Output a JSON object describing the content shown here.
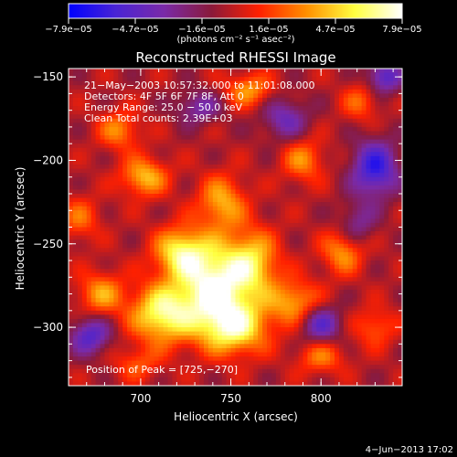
{
  "chart_data": {
    "type": "heatmap",
    "title": "Reconstructed RHESSI Image",
    "xlabel": "Heliocentric X (arcsec)",
    "ylabel": "Heliocentric Y (arcsec)",
    "xlim": [
      660,
      845
    ],
    "ylim": [
      -335,
      -145
    ],
    "x_ticks": [
      700,
      750,
      800
    ],
    "y_ticks": [
      -300,
      -250,
      -200,
      -150
    ],
    "x_tick_labels": [
      "700",
      "750",
      "800"
    ],
    "y_tick_labels": [
      "−300",
      "−250",
      "−200",
      "−150"
    ],
    "colorbar": {
      "min": -7.9e-05,
      "max": 7.9e-05,
      "tick_labels": [
        "−7.9e−05",
        "−4.7e−05",
        "−1.6e−05",
        "1.6e−05",
        "4.7e−05",
        "7.9e−05"
      ],
      "units": "(photons cm⁻² s⁻¹ asec⁻²)",
      "colors": [
        "#0000ff",
        "#4a24d4",
        "#7a2aa8",
        "#8a1a3a",
        "#ff2000",
        "#ff9000",
        "#ffff40",
        "#ffffff"
      ]
    },
    "annotations": [
      "21−May−2003 10:57:32.000 to 11:01:08.000",
      "Detectors: 4F 5F 6F 7F 8F, Att 0",
      "Energy Range: 25.0 − 50.0 keV",
      "Clean     Total counts: 2.39E+03"
    ],
    "peak_label": "Position of Peak = [725,−270]",
    "peak": [
      725,
      -270
    ],
    "sources": [
      {
        "x": 740,
        "y": -275,
        "amp": 1.0,
        "sx": 14,
        "sy": 18
      },
      {
        "x": 712,
        "y": -292,
        "amp": 0.85,
        "sx": 12,
        "sy": 12
      },
      {
        "x": 752,
        "y": -300,
        "amp": 0.8,
        "sx": 13,
        "sy": 11
      },
      {
        "x": 722,
        "y": -255,
        "amp": 0.7,
        "sx": 10,
        "sy": 10
      },
      {
        "x": 762,
        "y": -262,
        "amp": 0.65,
        "sx": 10,
        "sy": 14
      },
      {
        "x": 745,
        "y": -225,
        "amp": 0.55,
        "sx": 9,
        "sy": 11
      },
      {
        "x": 785,
        "y": -285,
        "amp": 0.55,
        "sx": 10,
        "sy": 9
      },
      {
        "x": 678,
        "y": -280,
        "amp": 0.5,
        "sx": 9,
        "sy": 9
      },
      {
        "x": 702,
        "y": -210,
        "amp": 0.6,
        "sx": 9,
        "sy": 8
      },
      {
        "x": 688,
        "y": -182,
        "amp": 0.45,
        "sx": 8,
        "sy": 8
      },
      {
        "x": 760,
        "y": -158,
        "amp": 0.5,
        "sx": 9,
        "sy": 7
      },
      {
        "x": 790,
        "y": -200,
        "amp": 0.45,
        "sx": 8,
        "sy": 9
      },
      {
        "x": 812,
        "y": -255,
        "amp": 0.5,
        "sx": 8,
        "sy": 9
      },
      {
        "x": 800,
        "y": -318,
        "amp": 0.4,
        "sx": 9,
        "sy": 7
      },
      {
        "x": 830,
        "y": -300,
        "amp": 0.35,
        "sx": 8,
        "sy": 8
      },
      {
        "x": 698,
        "y": -322,
        "amp": 0.3,
        "sx": 9,
        "sy": 7
      },
      {
        "x": 822,
        "y": -165,
        "amp": 0.35,
        "sx": 7,
        "sy": 8
      },
      {
        "x": 666,
        "y": -235,
        "amp": 0.35,
        "sx": 8,
        "sy": 9
      }
    ],
    "negatives": [
      {
        "x": 830,
        "y": -205,
        "amp": 0.75,
        "sx": 9,
        "sy": 12
      },
      {
        "x": 835,
        "y": -150,
        "amp": 0.6,
        "sx": 7,
        "sy": 7
      },
      {
        "x": 672,
        "y": -305,
        "amp": 0.6,
        "sx": 8,
        "sy": 8
      },
      {
        "x": 800,
        "y": -298,
        "amp": 0.55,
        "sx": 8,
        "sy": 8
      },
      {
        "x": 780,
        "y": -175,
        "amp": 0.45,
        "sx": 9,
        "sy": 9
      },
      {
        "x": 732,
        "y": -168,
        "amp": 0.4,
        "sx": 9,
        "sy": 7
      },
      {
        "x": 820,
        "y": -238,
        "amp": 0.35,
        "sx": 7,
        "sy": 9
      }
    ]
  },
  "footer_date": "4−Jun−2013 17:02"
}
